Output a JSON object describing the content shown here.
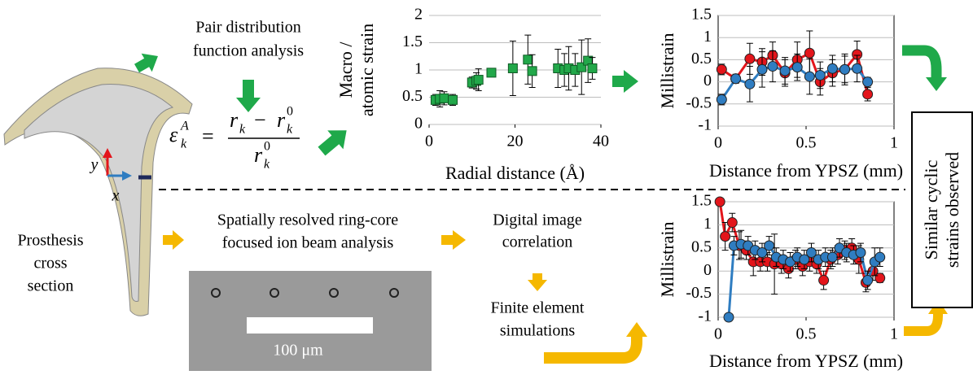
{
  "texts": {
    "pdf": [
      "Pair distribution",
      "function analysis"
    ],
    "prosthesis": [
      "Prosthesis",
      "cross",
      "section"
    ],
    "axis_y": "y",
    "axis_x": "x",
    "ringcore": [
      "Spatially resolved ring-core",
      "focused ion beam analysis"
    ],
    "scale_bar": "100 μm",
    "dic": [
      "Digital image",
      "correlation"
    ],
    "fe": [
      "Finite element",
      "simulations"
    ],
    "conclusion": [
      "Similar cyclic",
      "strains observed"
    ]
  },
  "equation": {
    "eps": "ε",
    "k": "k",
    "A": "A",
    "eq": "=",
    "r": "r",
    "minus": "−",
    "zero": "0"
  },
  "chart_data": [
    {
      "type": "scatter",
      "y_label": [
        "Macro /",
        "atomic strain"
      ],
      "x_label": "Radial distance (Å)",
      "xlim": [
        0,
        40
      ],
      "xticks": [
        0,
        20,
        40
      ],
      "ylim": [
        0,
        2
      ],
      "yticks": [
        0,
        0.5,
        1,
        1.5,
        2
      ],
      "grid": true,
      "frame": false,
      "series": [
        {
          "color": "#22a84a",
          "x": [
            1.5,
            2.5,
            3.5,
            5.5,
            10,
            11,
            11.5,
            14.5,
            19.5,
            23,
            24,
            30,
            31.5,
            32.5,
            34,
            35.5,
            37,
            38
          ],
          "values": [
            0.45,
            0.47,
            0.48,
            0.45,
            0.77,
            0.8,
            0.82,
            0.95,
            1.03,
            1.19,
            0.98,
            1.03,
            1.0,
            1.03,
            1.0,
            1.05,
            1.17,
            1.03
          ],
          "errors": [
            0.1,
            0.15,
            0.12,
            0.1,
            0.1,
            0.15,
            0.2,
            0.05,
            0.5,
            0.45,
            0.3,
            0.35,
            0.3,
            0.4,
            0.3,
            0.5,
            0.4,
            0.2
          ]
        }
      ]
    },
    {
      "type": "line",
      "y_label": [
        "Millistrain"
      ],
      "x_label": "Distance from YPSZ (mm)",
      "xlim": [
        0,
        1
      ],
      "xticks": [
        0,
        0.5,
        1
      ],
      "ylim": [
        -1,
        1.5
      ],
      "yticks": [
        -1,
        -0.5,
        0,
        0.5,
        1,
        1.5
      ],
      "grid": true,
      "frame": true,
      "series": [
        {
          "color": "#e3151b",
          "x": [
            0.02,
            0.1,
            0.18,
            0.25,
            0.31,
            0.38,
            0.45,
            0.52,
            0.58,
            0.65,
            0.72,
            0.79,
            0.85
          ],
          "values": [
            0.28,
            0.07,
            0.52,
            0.45,
            0.6,
            0.2,
            0.5,
            0.65,
            0.0,
            0.2,
            0.28,
            0.62,
            -0.28
          ],
          "errors": [
            0.12,
            0.1,
            0.35,
            0.3,
            0.3,
            0.3,
            0.4,
            0.5,
            0.3,
            0.3,
            0.35,
            0.3,
            0.15
          ]
        },
        {
          "color": "#2f7dc1",
          "x": [
            0.02,
            0.1,
            0.18,
            0.25,
            0.31,
            0.38,
            0.45,
            0.52,
            0.58,
            0.65,
            0.72,
            0.79,
            0.85
          ],
          "values": [
            -0.4,
            0.07,
            -0.05,
            0.28,
            0.35,
            0.25,
            0.33,
            0.12,
            0.15,
            0.3,
            0.28,
            0.3,
            0.0
          ],
          "errors": [
            0.12,
            0.1,
            0.4,
            0.4,
            0.35,
            0.3,
            0.3,
            0.4,
            0.3,
            0.3,
            0.3,
            0.3,
            0.1
          ]
        }
      ]
    },
    {
      "type": "line",
      "y_label": [
        "Millistrain"
      ],
      "x_label": "Distance from YPSZ (mm)",
      "xlim": [
        0,
        1
      ],
      "xticks": [
        0,
        0.5,
        1
      ],
      "ylim": [
        -1,
        1.5
      ],
      "yticks": [
        -1,
        -0.5,
        0,
        0.5,
        1,
        1.5
      ],
      "grid": true,
      "frame": true,
      "series": [
        {
          "color": "#e3151b",
          "x": [
            0.01,
            0.04,
            0.08,
            0.12,
            0.16,
            0.2,
            0.24,
            0.28,
            0.32,
            0.36,
            0.4,
            0.44,
            0.48,
            0.52,
            0.56,
            0.6,
            0.64,
            0.68,
            0.72,
            0.76,
            0.8,
            0.84,
            0.88,
            0.92
          ],
          "values": [
            1.5,
            0.75,
            1.05,
            0.55,
            0.45,
            0.2,
            0.2,
            0.2,
            0.15,
            0.15,
            0.05,
            0.25,
            0.1,
            0.2,
            0.15,
            -0.2,
            0.25,
            0.35,
            0.45,
            0.5,
            0.25,
            -0.25,
            0.0,
            -0.15
          ],
          "errors": [
            0,
            0.3,
            0.2,
            0.3,
            0.2,
            0.3,
            0.2,
            0.2,
            0.65,
            0.2,
            0.2,
            0.2,
            0.2,
            0.2,
            0.2,
            0.2,
            0.2,
            0.2,
            0.2,
            0.2,
            0.3,
            0.2,
            0.2,
            0.1
          ]
        },
        {
          "color": "#2f7dc1",
          "x": [
            0.06,
            0.09,
            0.13,
            0.17,
            0.21,
            0.25,
            0.29,
            0.33,
            0.37,
            0.41,
            0.45,
            0.49,
            0.53,
            0.57,
            0.61,
            0.65,
            0.69,
            0.73,
            0.77,
            0.81,
            0.85,
            0.89,
            0.92
          ],
          "values": [
            -1,
            0.55,
            0.58,
            0.55,
            0.45,
            0.4,
            0.55,
            0.3,
            0.25,
            0.2,
            0.3,
            0.25,
            0.4,
            0.25,
            0.3,
            0.3,
            0.5,
            0.4,
            0.35,
            0.4,
            -0.2,
            0.2,
            0.3
          ],
          "errors": [
            0,
            0.2,
            0.3,
            0.2,
            0.2,
            0.2,
            0.2,
            0.2,
            0.2,
            0.2,
            0.2,
            0.2,
            0.2,
            0.2,
            0.2,
            0.2,
            0.2,
            0.2,
            0.2,
            0.2,
            0.2,
            0.3,
            0.2
          ]
        }
      ]
    }
  ]
}
